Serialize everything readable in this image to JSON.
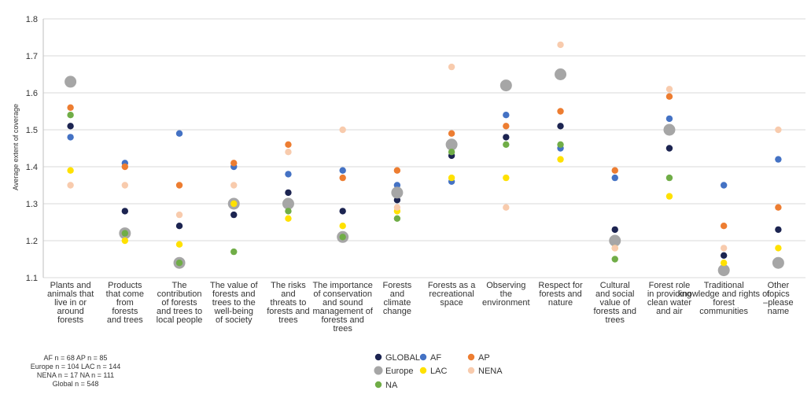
{
  "chart_data": {
    "type": "scatter",
    "ylabel": "Average extent of coverage",
    "ylim": [
      1.1,
      1.8
    ],
    "yticks": [
      "1.1",
      "1.2",
      "1.3",
      "1.4",
      "1.5",
      "1.6",
      "1.7",
      "1.8"
    ],
    "grid": "horizontal",
    "legend_position": "bottom-center",
    "categories": [
      [
        "Plants and",
        "animals that",
        "live in or",
        "around",
        "forests"
      ],
      [
        "Products",
        "that come",
        "from",
        "forests",
        "and trees"
      ],
      [
        "The",
        "contribution",
        "of forests",
        "and trees to",
        "local people"
      ],
      [
        "The value of",
        "forests and",
        "trees to the",
        "well-being",
        "of society"
      ],
      [
        "The risks",
        "and",
        "threats to",
        "forests and",
        "trees"
      ],
      [
        "The importance",
        "of conservation",
        "and sound",
        "management of",
        "forests and",
        "trees"
      ],
      [
        "Forests",
        "and",
        "climate",
        "change"
      ],
      [
        "Forests as a",
        "recreational",
        "space"
      ],
      [
        "Observing",
        "the",
        "environment"
      ],
      [
        "Respect for",
        "forests and",
        "nature"
      ],
      [
        "Cultural",
        "and social",
        "value of",
        "forests and",
        "trees"
      ],
      [
        "Forest role",
        "in providing",
        "clean water",
        "and air"
      ],
      [
        "Traditional",
        "knowledge and rights of",
        "forest",
        "communities"
      ],
      [
        "Other",
        "topics",
        "–please",
        "name"
      ]
    ],
    "series": [
      {
        "name": "GLOBAL",
        "color": "#1c2451",
        "values": [
          1.51,
          1.28,
          1.24,
          1.27,
          1.33,
          1.28,
          1.31,
          1.43,
          1.48,
          1.51,
          1.23,
          1.45,
          1.16,
          1.23
        ]
      },
      {
        "name": "AF",
        "color": "#4472c4",
        "values": [
          1.48,
          1.41,
          1.49,
          1.4,
          1.38,
          1.39,
          1.35,
          1.36,
          1.54,
          1.45,
          1.37,
          1.53,
          1.35,
          1.42
        ]
      },
      {
        "name": "AP",
        "color": "#ed7d31",
        "values": [
          1.56,
          1.4,
          1.35,
          1.41,
          1.46,
          1.37,
          1.39,
          1.49,
          1.51,
          1.55,
          1.39,
          1.59,
          1.24,
          1.29
        ]
      },
      {
        "name": "Europe",
        "color": "#a6a6a6",
        "values": [
          1.63,
          1.22,
          1.14,
          1.3,
          1.3,
          1.21,
          1.33,
          1.46,
          1.62,
          1.65,
          1.2,
          1.5,
          1.12,
          1.14
        ]
      },
      {
        "name": "LAC",
        "color": "#ffe100",
        "values": [
          1.39,
          1.2,
          1.19,
          1.3,
          1.26,
          1.24,
          1.28,
          1.37,
          1.37,
          1.42,
          1.18,
          1.32,
          1.14,
          1.18
        ]
      },
      {
        "name": "NENA",
        "color": "#f8cbad",
        "values": [
          1.35,
          1.35,
          1.27,
          1.35,
          1.44,
          1.5,
          1.29,
          1.67,
          1.29,
          1.73,
          1.18,
          1.61,
          1.18,
          1.5
        ]
      },
      {
        "name": "NA",
        "color": "#70ad47",
        "values": [
          1.54,
          1.22,
          1.14,
          1.17,
          1.28,
          1.21,
          1.26,
          1.44,
          1.46,
          1.46,
          1.15,
          1.37,
          null,
          null
        ]
      }
    ]
  },
  "notes": [
    "AF n = 68  AP n = 85",
    "Europe n =  104  LAC n = 144",
    "NENA n = 17  NA n = 111",
    "Global n = 548"
  ]
}
